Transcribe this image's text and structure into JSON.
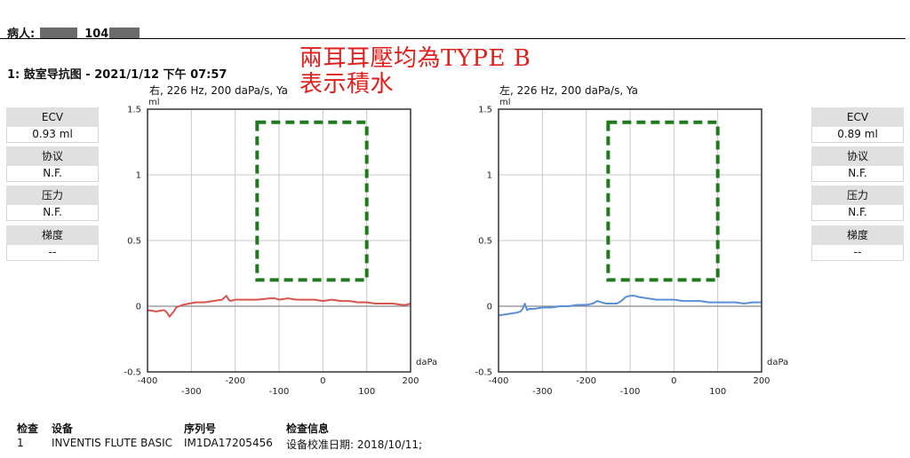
{
  "header": {
    "patient_label": "病人:",
    "patient_id_fragment": "104"
  },
  "test_title": "1: 鼓室导抗图 - 2021/1/12 下午 07:57",
  "annotation": {
    "line1": "兩耳耳壓均為TYPE B",
    "line2": "表示積水",
    "color": "#e0201c"
  },
  "colors": {
    "right_ear": "#d9534f",
    "left_ear": "#5b8fd6",
    "highlight_box": "#1f7a1f"
  },
  "measures": {
    "right": [
      {
        "label": "ECV",
        "value": "0.93 ml"
      },
      {
        "label": "协议",
        "value": "N.F."
      },
      {
        "label": "压力",
        "value": "N.F."
      },
      {
        "label": "梯度",
        "value": "--"
      }
    ],
    "left": [
      {
        "label": "ECV",
        "value": "0.89 ml"
      },
      {
        "label": "协议",
        "value": "N.F."
      },
      {
        "label": "压力",
        "value": "N.F."
      },
      {
        "label": "梯度",
        "value": "--"
      }
    ]
  },
  "chart_data": [
    {
      "type": "line",
      "title": "右, 226 Hz, 200 daPa/s, Ya",
      "xlabel": "daPa",
      "ylabel": "ml",
      "xlim": [
        -400,
        200
      ],
      "ylim": [
        -0.5,
        1.5
      ],
      "xticks_top_row": [
        "-400",
        "-200",
        "0",
        "200"
      ],
      "xticks_bottom_row": [
        "-300",
        "-100",
        "100"
      ],
      "yticks": [
        "1.5",
        "1",
        "0.5",
        "0",
        "-0.5"
      ],
      "grid": true,
      "series": [
        {
          "color": "#d9534f",
          "x": [
            -400,
            -380,
            -362,
            -355,
            -350,
            -345,
            -340,
            -335,
            -328,
            -320,
            -305,
            -290,
            -270,
            -250,
            -230,
            -220,
            -215,
            -210,
            -200,
            -180,
            -150,
            -120,
            -110,
            -100,
            -80,
            -60,
            -40,
            -20,
            0,
            20,
            40,
            60,
            80,
            100,
            120,
            140,
            160,
            180,
            190,
            200
          ],
          "y": [
            -0.03,
            -0.04,
            -0.03,
            -0.05,
            -0.08,
            -0.06,
            -0.04,
            -0.01,
            0.0,
            0.01,
            0.02,
            0.03,
            0.03,
            0.04,
            0.05,
            0.08,
            0.05,
            0.04,
            0.05,
            0.05,
            0.05,
            0.06,
            0.06,
            0.05,
            0.06,
            0.05,
            0.05,
            0.05,
            0.04,
            0.05,
            0.04,
            0.04,
            0.03,
            0.03,
            0.02,
            0.02,
            0.02,
            0.01,
            0.01,
            0.02
          ]
        }
      ],
      "highlight_box": {
        "x": [
          -150,
          100
        ],
        "y": [
          0.2,
          1.4
        ],
        "style": "dashed"
      }
    },
    {
      "type": "line",
      "title": "左, 226 Hz, 200 daPa/s, Ya",
      "xlabel": "daPa",
      "ylabel": "ml",
      "xlim": [
        -400,
        200
      ],
      "ylim": [
        -0.5,
        1.5
      ],
      "xticks_top_row": [
        "-400",
        "-200",
        "0",
        "200"
      ],
      "xticks_bottom_row": [
        "-300",
        "-100",
        "100"
      ],
      "yticks": [
        "1.5",
        "1",
        "0.5",
        "0",
        "-0.5"
      ],
      "grid": true,
      "series": [
        {
          "color": "#5b8fd6",
          "x": [
            -400,
            -380,
            -360,
            -350,
            -345,
            -340,
            -335,
            -330,
            -320,
            -300,
            -280,
            -260,
            -240,
            -220,
            -200,
            -185,
            -175,
            -165,
            -155,
            -145,
            -130,
            -120,
            -110,
            -100,
            -90,
            -80,
            -60,
            -40,
            -20,
            0,
            20,
            40,
            60,
            80,
            100,
            120,
            140,
            160,
            180,
            200
          ],
          "y": [
            -0.07,
            -0.06,
            -0.05,
            -0.04,
            -0.02,
            0.02,
            -0.03,
            -0.02,
            -0.02,
            -0.01,
            -0.01,
            0.0,
            0.0,
            0.01,
            0.01,
            0.02,
            0.04,
            0.03,
            0.02,
            0.02,
            0.02,
            0.04,
            0.07,
            0.08,
            0.08,
            0.07,
            0.06,
            0.05,
            0.05,
            0.05,
            0.04,
            0.04,
            0.04,
            0.03,
            0.03,
            0.03,
            0.03,
            0.02,
            0.03,
            0.03
          ]
        }
      ],
      "highlight_box": {
        "x": [
          -150,
          100
        ],
        "y": [
          0.2,
          1.4
        ],
        "style": "dashed"
      }
    }
  ],
  "footer": {
    "headers": {
      "exam": "检查",
      "device": "设备",
      "serial": "序列号",
      "info": "检查信息"
    },
    "row": {
      "exam": "1",
      "device": "INVENTIS FLUTE BASIC",
      "serial": "IM1DA17205456",
      "info": "设备校准日期: 2018/10/11;"
    }
  }
}
